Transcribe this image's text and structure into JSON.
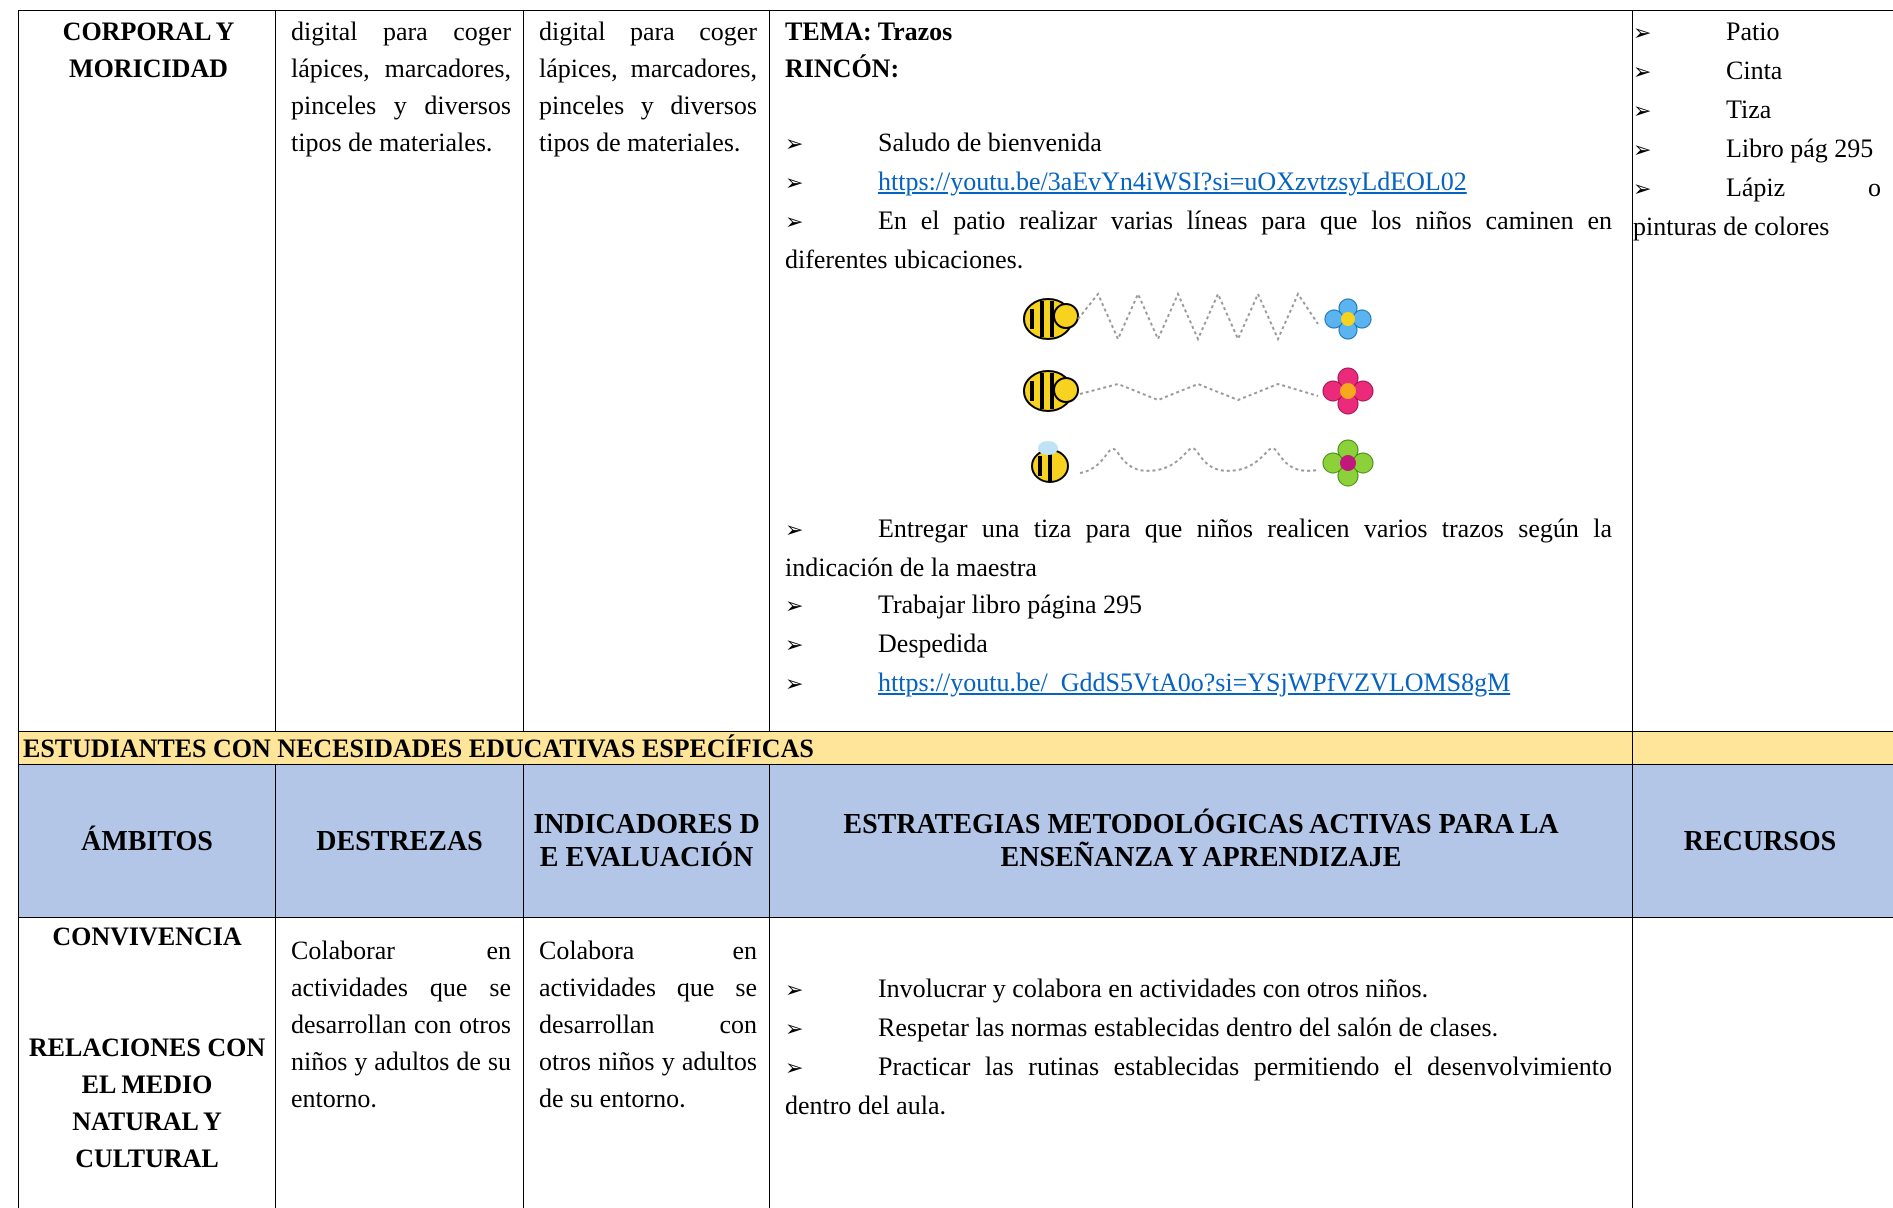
{
  "table": {
    "row1": {
      "ambito": "CORPORAL Y MORICIDAD",
      "destreza": "digital para coger lápices, marcadores, pinceles y diversos tipos de materiales.",
      "indicador": "digital para coger lápices, marcadores, pinceles y diversos tipos de materiales.",
      "tema": "TEMA: Trazos",
      "rincon": "RINCÓN:",
      "items": [
        "Saludo de bienvenida",
        "https://youtu.be/3aEvYn4iWSI?si=uOXzvtzsyLdEOL02",
        "En el patio realizar varias líneas para que los niños caminen en diferentes ubicaciones.",
        "Entregar una tiza para que niños realicen varios trazos según la indicación de la maestra",
        "Trabajar libro página 295",
        "Despedida",
        "https://youtu.be/_GddS5VtA0o?si=YSjWPfVZVLOMS8gM"
      ],
      "recursos": [
        "Patio",
        "Cinta",
        "Tiza",
        "Libro pág 295",
        "Lápiz o pinturas de colores"
      ]
    },
    "section_title": "ESTUDIANTES CON NECESIDADES EDUCATIVAS ESPECÍFICAS",
    "headers": [
      "ÁMBITOS",
      "DESTREZAS",
      "INDICADORES DE EVALUACIÓN",
      "ESTRATEGIAS METODOLÓGICAS ACTIVAS PARA LA ENSEÑANZA Y APRENDIZAJE",
      "RECURSOS"
    ],
    "row2": {
      "ambitos": [
        "CONVIVENCIA",
        "RELACIONES CON EL MEDIO NATURAL Y CULTURAL"
      ],
      "destreza": "Colaborar en actividades que se desarrollan con otros niños y adultos de su entorno.",
      "indicador": "Colabora en actividades que se desarrollan con otros niños y adultos de su entorno.",
      "items": [
        "Involucrar y colabora en actividades con otros niños.",
        "Respetar las normas establecidas dentro del salón de clases.",
        "Practicar las rutinas establecidas permitiendo el desenvolvimiento dentro del aula."
      ]
    }
  }
}
